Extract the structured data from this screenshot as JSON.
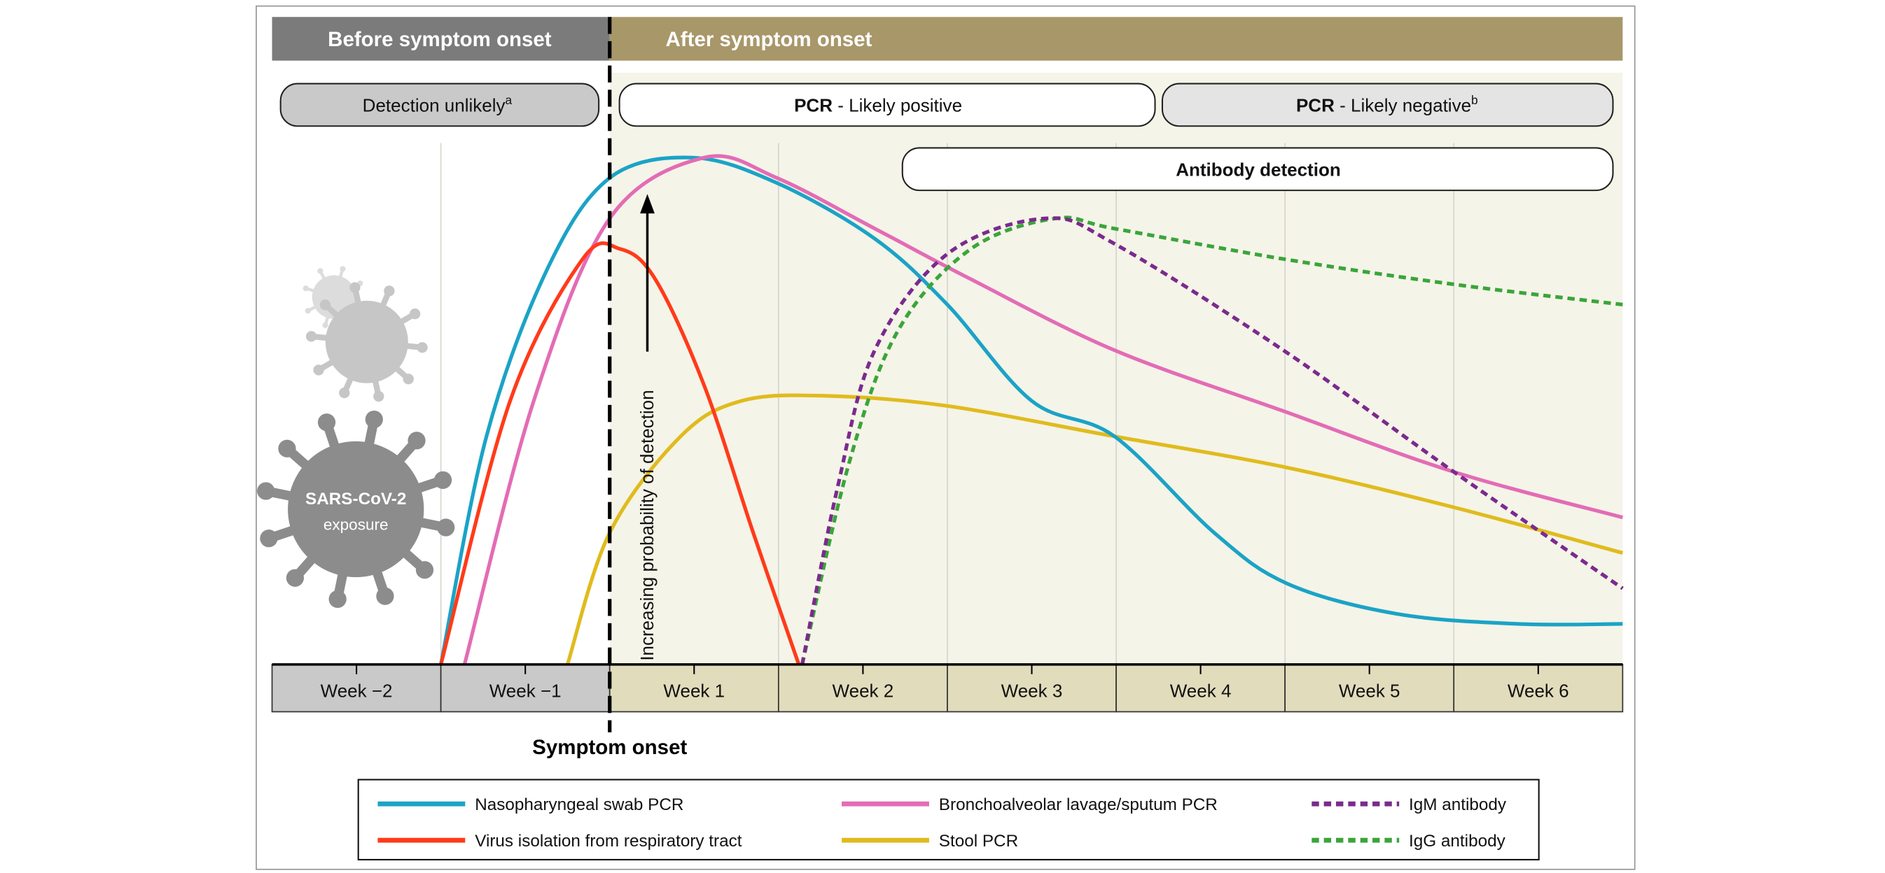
{
  "header": {
    "before_label": "Before symptom onset",
    "after_label": "After symptom onset"
  },
  "pills": {
    "detection_unlikely": "Detection unlikely",
    "detection_unlikely_sup": "a",
    "pcr_positive_bold": "PCR",
    "pcr_positive_rest": " - Likely positive",
    "pcr_negative_bold": "PCR",
    "pcr_negative_rest": " - Likely negative",
    "pcr_negative_sup": "b",
    "antibody": "Antibody detection"
  },
  "virus_icon": {
    "label_line1": "SARS-CoV-2",
    "label_line2": "exposure"
  },
  "symptom_onset_label": "Symptom onset",
  "colors": {
    "before_header": "#7b7b7b",
    "after_header": "#a89769",
    "after_background": "#f5f4e8",
    "before_week_band": "#c9c9c9",
    "after_week_band": "#e1dcbb"
  },
  "chart_data": {
    "type": "line",
    "title": "",
    "ylabel": "Increasing probability of detection",
    "xlabel": "",
    "xlim": [
      -2,
      6
    ],
    "ylim": [
      0,
      1
    ],
    "grid": true,
    "legend_placement": "bottom",
    "x_unit": "weeks relative to symptom onset",
    "categories": [
      "Week −2",
      "Week −1",
      "Week 1",
      "Week 2",
      "Week 3",
      "Week 4",
      "Week 5",
      "Week 6"
    ],
    "series": [
      {
        "name": "Nasopharyngeal swab PCR",
        "color": "#1ba3c6",
        "dashed": false,
        "x": [
          -1.0,
          -0.73,
          -0.37,
          0,
          0.49,
          0.99,
          1.57,
          2.0,
          2.5,
          2.99,
          3.58,
          4.01,
          4.66,
          5.38,
          6.0
        ],
        "y": [
          0,
          0.45,
          0.78,
          0.96,
          1.0,
          0.95,
          0.84,
          0.71,
          0.52,
          0.45,
          0.26,
          0.16,
          0.1,
          0.08,
          0.08
        ]
      },
      {
        "name": "Virus isolation from respiratory tract",
        "color": "#ff3b1a",
        "dashed": false,
        "x": [
          -1.0,
          -0.59,
          -0.16,
          0.06,
          0.27,
          0.56,
          0.85,
          1.12
        ],
        "y": [
          0,
          0.52,
          0.8,
          0.82,
          0.76,
          0.55,
          0.26,
          0
        ]
      },
      {
        "name": "Bronchoalveolar lavage/sputum PCR",
        "color": "#e36cb5",
        "dashed": false,
        "x": [
          -0.86,
          -0.45,
          0,
          0.56,
          0.99,
          1.57,
          2.14,
          2.99,
          3.99,
          5.0,
          6.0
        ],
        "y": [
          0,
          0.52,
          0.88,
          1.0,
          0.96,
          0.86,
          0.76,
          0.62,
          0.5,
          0.38,
          0.29
        ]
      },
      {
        "name": "Stool PCR",
        "color": "#e0bb1e",
        "dashed": false,
        "x": [
          -0.25,
          0,
          0.42,
          0.78,
          1.28,
          2.0,
          2.99,
          3.99,
          5.0,
          6.0
        ],
        "y": [
          0,
          0.26,
          0.45,
          0.52,
          0.53,
          0.51,
          0.45,
          0.39,
          0.31,
          0.22
        ]
      },
      {
        "name": "IgM antibody",
        "color": "#7b2a8e",
        "dashed": true,
        "x": [
          1.14,
          1.35,
          1.57,
          2.0,
          2.58,
          2.99,
          3.99,
          5.0,
          6.0
        ],
        "y": [
          0,
          0.35,
          0.62,
          0.81,
          0.88,
          0.83,
          0.62,
          0.38,
          0.15
        ]
      },
      {
        "name": "IgG antibody",
        "color": "#3aa53a",
        "dashed": true,
        "x": [
          1.14,
          1.42,
          1.71,
          2.14,
          2.64,
          2.99,
          3.99,
          5.0,
          6.0
        ],
        "y": [
          0,
          0.4,
          0.66,
          0.82,
          0.88,
          0.86,
          0.8,
          0.75,
          0.71
        ]
      }
    ]
  }
}
